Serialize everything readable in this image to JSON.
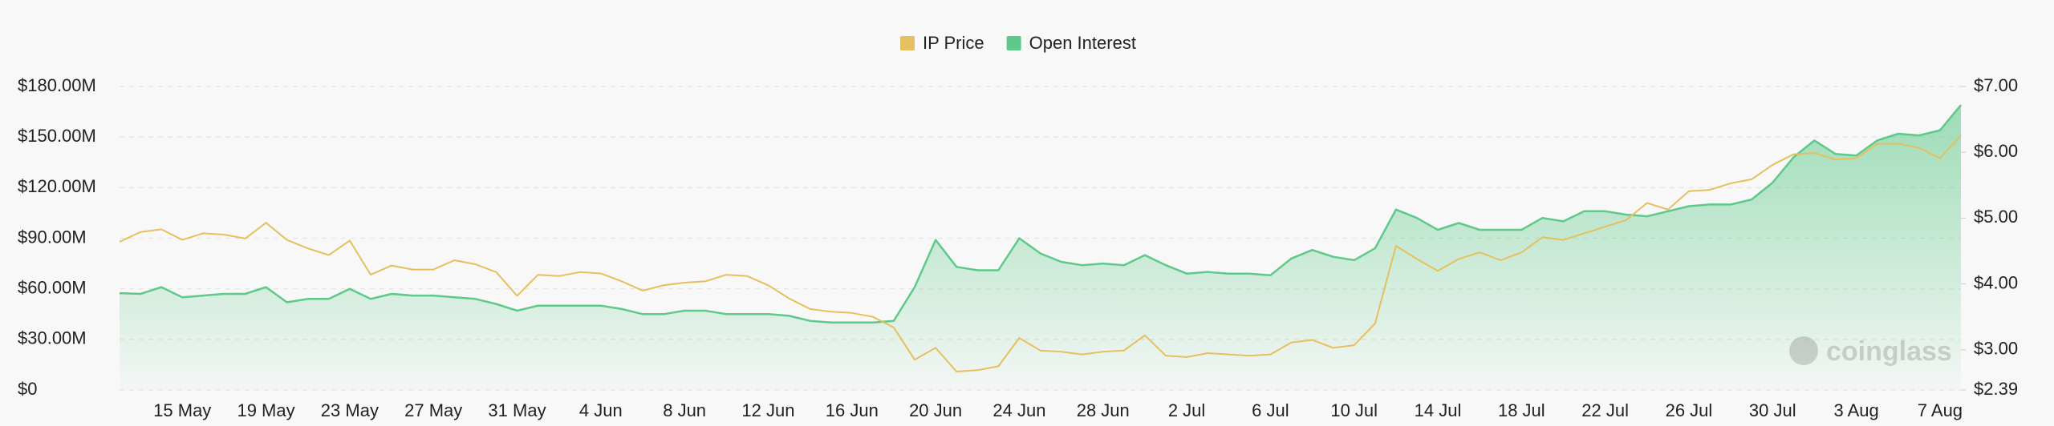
{
  "chart_data": {
    "type": "line",
    "categories": [
      null,
      null,
      null,
      "15 May",
      null,
      null,
      null,
      "19 May",
      null,
      null,
      null,
      "23 May",
      null,
      null,
      null,
      "27 May",
      null,
      null,
      null,
      "31 May",
      null,
      null,
      null,
      "4 Jun",
      null,
      null,
      null,
      "8 Jun",
      null,
      null,
      null,
      "12 Jun",
      null,
      null,
      null,
      "16 Jun",
      null,
      null,
      null,
      "20 Jun",
      null,
      null,
      null,
      "24 Jun",
      null,
      null,
      null,
      "28 Jun",
      null,
      null,
      null,
      "2 Jul",
      null,
      null,
      null,
      "6 Jul",
      null,
      null,
      null,
      "10 Jul",
      null,
      null,
      null,
      "14 Jul",
      null,
      null,
      null,
      "18 Jul",
      null,
      null,
      null,
      "22 Jul",
      null,
      null,
      null,
      "26 Jul",
      null,
      null,
      null,
      "30 Jul",
      null,
      null,
      null,
      "3 Aug",
      null,
      null,
      null,
      "7 Aug",
      null
    ],
    "series": [
      {
        "name": "IP Price",
        "color": "#e6bf5e",
        "axis": "y2",
        "values": [
          4.64,
          4.79,
          4.83,
          4.67,
          4.77,
          4.75,
          4.69,
          4.93,
          4.67,
          4.54,
          4.44,
          4.66,
          4.14,
          4.28,
          4.22,
          4.22,
          4.36,
          4.3,
          4.18,
          3.82,
          4.14,
          4.12,
          4.18,
          4.16,
          4.04,
          3.9,
          3.98,
          4.02,
          4.04,
          4.14,
          4.12,
          3.98,
          3.78,
          3.62,
          3.58,
          3.56,
          3.5,
          3.34,
          2.85,
          3.03,
          2.67,
          2.69,
          2.75,
          3.18,
          2.99,
          2.97,
          2.93,
          2.97,
          2.99,
          3.22,
          2.91,
          2.89,
          2.95,
          2.93,
          2.91,
          2.93,
          3.11,
          3.15,
          3.03,
          3.07,
          3.4,
          4.58,
          4.38,
          4.2,
          4.38,
          4.48,
          4.36,
          4.48,
          4.71,
          4.67,
          4.77,
          4.87,
          4.97,
          5.23,
          5.13,
          5.41,
          5.43,
          5.53,
          5.59,
          5.81,
          5.97,
          5.99,
          5.89,
          5.91,
          6.13,
          6.13,
          6.07,
          5.91,
          6.26
        ]
      },
      {
        "name": "Open Interest",
        "color": "#5fc98a",
        "values": [
          57.4,
          57,
          61,
          55,
          56,
          57,
          57,
          61,
          52,
          54,
          54,
          60,
          54,
          57,
          56,
          56,
          55,
          54,
          51,
          47,
          50,
          50,
          50,
          50,
          48,
          45,
          45,
          47,
          47,
          45,
          45,
          45,
          44,
          41,
          40,
          40,
          40,
          41,
          61,
          89,
          73,
          71,
          71,
          90,
          81,
          76,
          74,
          75,
          74,
          80,
          74,
          69,
          70,
          69,
          69,
          68,
          78,
          83,
          79,
          77,
          84,
          107,
          102,
          95,
          99,
          95,
          95,
          95,
          102,
          100,
          106,
          106,
          104,
          103,
          106,
          109,
          110,
          110,
          113,
          123,
          138,
          148,
          140,
          139,
          148,
          152,
          151,
          154,
          169
        ]
      }
    ],
    "ylim": [
      0,
      180000000
    ],
    "yticks": [
      {
        "value": 0,
        "label": "$0"
      },
      {
        "value": 30000000,
        "label": "$30.00M"
      },
      {
        "value": 60000000,
        "label": "$60.00M"
      },
      {
        "value": 90000000,
        "label": "$90.00M"
      },
      {
        "value": 120000000,
        "label": "$120.00M"
      },
      {
        "value": 150000000,
        "label": "$150.00M"
      },
      {
        "value": 180000000,
        "label": "$180.00M"
      }
    ],
    "y2lim": [
      2.39,
      7.0
    ],
    "y2ticks": [
      {
        "value": 2.39,
        "label": "$2.39"
      },
      {
        "value": 3,
        "label": "$3.00"
      },
      {
        "value": 4,
        "label": "$4.00"
      },
      {
        "value": 5,
        "label": "$5.00"
      },
      {
        "value": 6,
        "label": "$6.00"
      },
      {
        "value": 7,
        "label": "$7.00"
      }
    ],
    "value_unit": 1000000,
    "grid": true,
    "legend": "top",
    "watermark": "coinglass"
  }
}
